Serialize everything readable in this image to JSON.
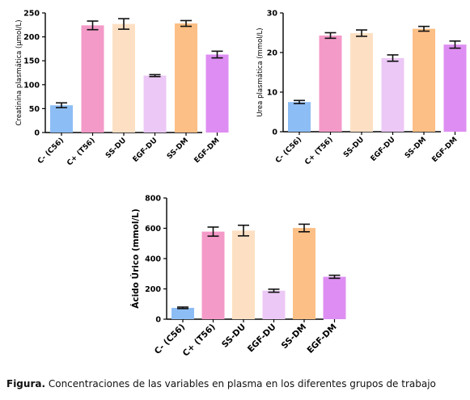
{
  "caption": {
    "label": "Figura.",
    "text": " Concentraciones de las variables en plasma  en los diferentes grupos de trabajo"
  },
  "chart_data": [
    {
      "type": "bar",
      "title": "",
      "xlabel": "",
      "ylabel": "Creatinina plasmática (µmol/L)",
      "ylim": [
        0,
        250
      ],
      "yticks": [
        0,
        50,
        100,
        150,
        200,
        250
      ],
      "categories": [
        "C- (C56)",
        "C+ (T56)",
        "SS-DU",
        "EGF-DU",
        "SS-DM",
        "EGF-DM"
      ],
      "values": [
        57,
        224,
        227,
        119,
        228,
        163
      ],
      "errors": [
        5,
        9,
        11,
        2,
        6,
        7
      ],
      "colors": [
        "#8dbdf5",
        "#f49ac8",
        "#fde0c3",
        "#ecc8f6",
        "#fcbf85",
        "#de8ef2"
      ]
    },
    {
      "type": "bar",
      "title": "",
      "xlabel": "",
      "ylabel": "Urea plasmática (mmol/L)",
      "ylim": [
        0,
        30
      ],
      "yticks": [
        0,
        10,
        20,
        30
      ],
      "categories": [
        "C- (C56)",
        "C+ (T56)",
        "SS-DU",
        "EGF-DU",
        "SS-DM",
        "EGF-DM"
      ],
      "values": [
        7.5,
        24.3,
        24.9,
        18.6,
        26.0,
        22.0
      ],
      "errors": [
        0.4,
        0.7,
        0.8,
        0.8,
        0.6,
        0.9
      ],
      "colors": [
        "#8dbdf5",
        "#f49ac8",
        "#fde0c3",
        "#ecc8f6",
        "#fcbf85",
        "#de8ef2"
      ]
    },
    {
      "type": "bar",
      "title": "",
      "xlabel": "",
      "ylabel": "Ácido Úrico (mmol/L)",
      "ylim": [
        0,
        800
      ],
      "yticks": [
        0,
        200,
        400,
        600,
        800
      ],
      "categories": [
        "C- (C56)",
        "C+ (T56)",
        "SS-DU",
        "EGF-DU",
        "SS-DM",
        "EGF-DM"
      ],
      "values": [
        75,
        578,
        585,
        188,
        602,
        280
      ],
      "errors": [
        5,
        30,
        35,
        10,
        25,
        10
      ],
      "colors": [
        "#8dbdf5",
        "#f49ac8",
        "#fde0c3",
        "#ecc8f6",
        "#fcbf85",
        "#de8ef2"
      ]
    }
  ]
}
